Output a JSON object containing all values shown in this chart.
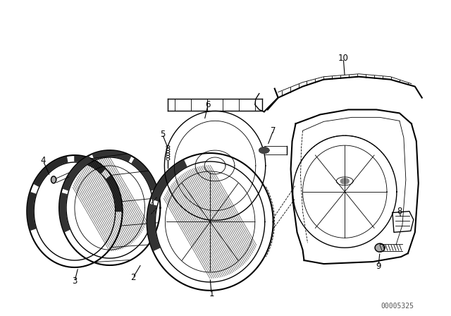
{
  "background_color": "#ffffff",
  "diagram_color": "#000000",
  "watermark": "00005325",
  "fig_width": 6.4,
  "fig_height": 4.48,
  "dpi": 100,
  "lw_thin": 0.6,
  "lw_med": 1.0,
  "lw_thick": 1.5
}
